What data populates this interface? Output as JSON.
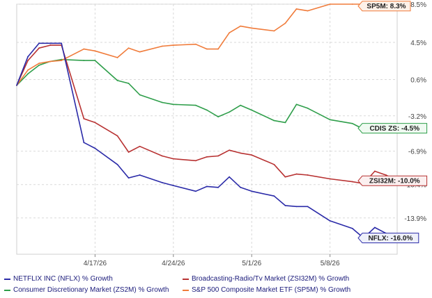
{
  "chart_data": {
    "type": "line",
    "title": "",
    "xlabel": "",
    "ylabel": "",
    "x_tick_labels": [
      "4/17/26",
      "4/24/26",
      "5/1/26",
      "5/8/26"
    ],
    "y_tick_labels": [
      "8.5%",
      "4.5%",
      "0.6%",
      "-3.2%",
      "-6.9%",
      "-10.4%",
      "-13.9%"
    ],
    "y_ticks": [
      8.5,
      4.5,
      0.6,
      -3.2,
      -6.9,
      -10.4,
      -13.9
    ],
    "y_range": [
      -17.7,
      8.5
    ],
    "grid": true,
    "legend_position": "bottom",
    "x_dates": [
      "2026-04-10",
      "2026-04-11",
      "2026-04-12",
      "2026-04-13",
      "2026-04-14",
      "2026-04-15",
      "2026-04-16",
      "2026-04-17",
      "2026-04-18",
      "2026-04-19",
      "2026-04-20",
      "2026-04-21",
      "2026-04-22",
      "2026-04-23",
      "2026-04-24",
      "2026-04-25",
      "2026-04-26",
      "2026-04-27",
      "2026-04-28",
      "2026-04-29",
      "2026-04-30",
      "2026-05-01",
      "2026-05-02",
      "2026-05-03",
      "2026-05-04",
      "2026-05-05",
      "2026-05-06",
      "2026-05-07",
      "2026-05-08",
      "2026-05-09",
      "2026-05-10",
      "2026-05-11",
      "2026-05-12",
      "2026-05-13",
      "2026-05-14"
    ],
    "series": [
      {
        "name": "NETFLIX INC (NFLX) % Growth",
        "color": "#2a2aa8",
        "end_label": "NFLX: -16.0%",
        "label_bg": "#eef0fa",
        "label_border": "#2a2aa8",
        "values": [
          0.0,
          3.0,
          4.4,
          4.4,
          4.4,
          null,
          -6.0,
          -6.6,
          null,
          -8.3,
          -9.7,
          -9.4,
          null,
          -10.2,
          -10.5,
          null,
          -11.1,
          -10.6,
          -10.7,
          -9.6,
          -10.7,
          -11.1,
          null,
          -11.6,
          -12.6,
          -12.7,
          -12.7,
          null,
          -14.2,
          null,
          -15.0,
          -16.0,
          -14.9,
          -15.5,
          -16.0
        ]
      },
      {
        "name": "Broadcasting-Radio/Tv Market (ZSI32M) % Growth",
        "color": "#b83232",
        "end_label": "ZSI32M: -10.0%",
        "label_bg": "#fbefef",
        "label_border": "#b83232",
        "values": [
          0.0,
          2.6,
          3.9,
          4.2,
          4.2,
          null,
          -3.5,
          -3.9,
          null,
          -5.3,
          -7.0,
          -6.4,
          null,
          -7.4,
          -7.7,
          null,
          -7.9,
          -7.5,
          -7.4,
          -6.8,
          -7.1,
          -7.3,
          null,
          -8.3,
          -9.6,
          -9.3,
          -9.4,
          null,
          -9.8,
          null,
          -10.1,
          -10.3,
          -9.0,
          -9.4,
          -10.0
        ]
      },
      {
        "name": "Consumer Discretionary Market (ZS2M) % Growth",
        "color": "#2e9e4a",
        "end_label": "CDIS ZS: -4.5%",
        "label_bg": "#effaf1",
        "label_border": "#2e9e4a",
        "values": [
          0.0,
          1.2,
          2.1,
          2.5,
          2.7,
          null,
          2.6,
          2.6,
          null,
          0.5,
          0.2,
          -1.0,
          null,
          -1.8,
          -2.0,
          null,
          -2.1,
          -2.6,
          -3.3,
          -2.8,
          -2.1,
          -2.6,
          null,
          -3.7,
          -3.9,
          -2.0,
          -2.4,
          null,
          -3.6,
          null,
          -4.0,
          -4.6,
          -4.5,
          -4.5,
          -4.5
        ]
      },
      {
        "name": "S&P 500 Composite Market ETF (SP5M) % Growth",
        "color": "#f07b3a",
        "end_label": "SP5M: 8.3%",
        "label_bg": "#fdf1e8",
        "label_border": "#f07b3a",
        "values": [
          0.0,
          1.6,
          2.3,
          2.5,
          2.6,
          null,
          3.8,
          3.6,
          null,
          2.9,
          3.9,
          3.5,
          null,
          4.1,
          4.2,
          null,
          4.3,
          3.8,
          3.8,
          5.5,
          6.2,
          6.0,
          null,
          5.7,
          6.5,
          8.0,
          7.8,
          null,
          8.5,
          null,
          8.5,
          8.5,
          8.4,
          8.3,
          8.3
        ]
      }
    ]
  }
}
